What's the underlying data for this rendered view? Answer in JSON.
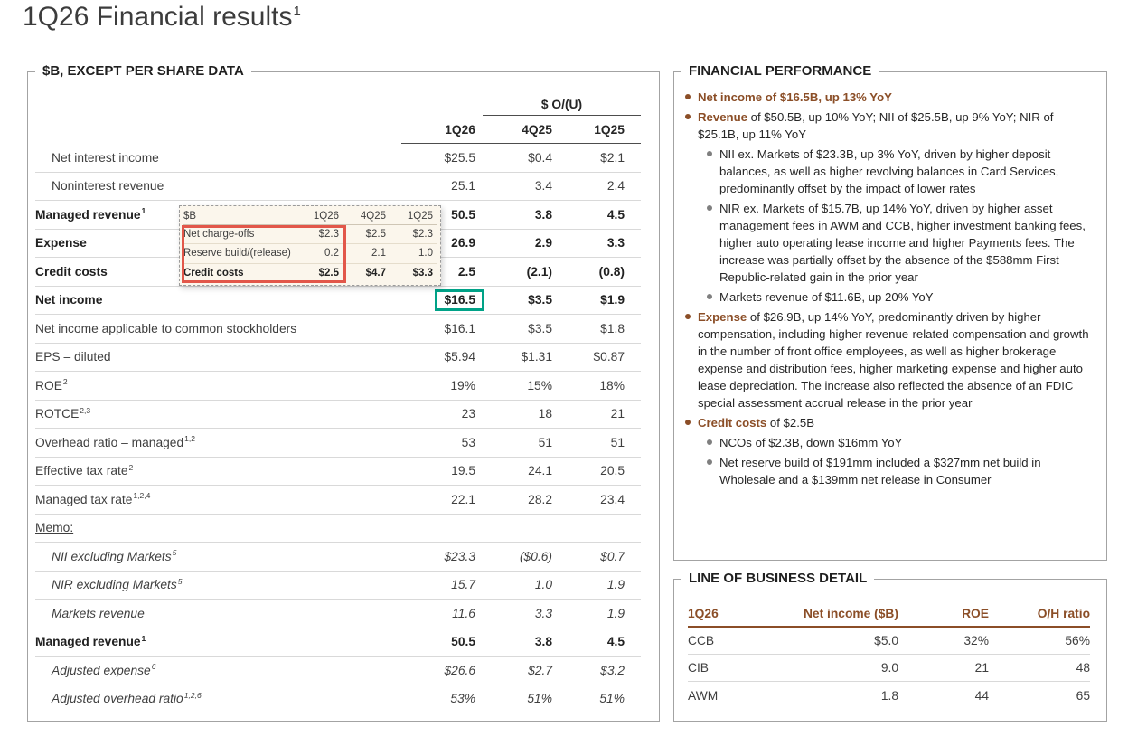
{
  "page": {
    "title": "1Q26 Financial results",
    "title_sup": "1"
  },
  "colors": {
    "accent_brown": "#8B4E27",
    "highlight_teal": "#00A287",
    "callout_red": "#E2574A"
  },
  "left_panel": {
    "title": "$B, EXCEPT PER SHARE DATA",
    "ou_header": "$ O/(U)",
    "columns": [
      "1Q26",
      "4Q25",
      "1Q25"
    ],
    "rows": [
      {
        "label": "Net interest income",
        "sup": "",
        "indent": true,
        "values": [
          "$25.5",
          "$0.4",
          "$2.1"
        ]
      },
      {
        "label": "Noninterest revenue",
        "sup": "",
        "indent": true,
        "values": [
          "25.1",
          "3.4",
          "2.4"
        ]
      },
      {
        "label": "Managed revenue",
        "sup": "1",
        "bold": true,
        "values": [
          "50.5",
          "3.8",
          "4.5"
        ]
      },
      {
        "label": "Expense",
        "sup": "",
        "bold": true,
        "values": [
          "26.9",
          "2.9",
          "3.3"
        ]
      },
      {
        "label": "Credit costs",
        "sup": "",
        "bold": true,
        "values": [
          "2.5",
          "(2.1)",
          "(0.8)"
        ]
      },
      {
        "label": "Net income",
        "sup": "",
        "bold": true,
        "highlight": true,
        "values": [
          "$16.5",
          "$3.5",
          "$1.9"
        ]
      },
      {
        "label": "Net income applicable to common stockholders",
        "sup": "",
        "values": [
          "$16.1",
          "$3.5",
          "$1.8"
        ]
      },
      {
        "label": "EPS – diluted",
        "sup": "",
        "values": [
          "$5.94",
          "$1.31",
          "$0.87"
        ]
      },
      {
        "label": "ROE",
        "sup": "2",
        "values": [
          "19%",
          "15%",
          "18%"
        ]
      },
      {
        "label": "ROTCE",
        "sup": "2,3",
        "values": [
          "23",
          "18",
          "21"
        ]
      },
      {
        "label": "Overhead ratio – managed",
        "sup": "1,2",
        "values": [
          "53",
          "51",
          "51"
        ]
      },
      {
        "label": "Effective tax rate",
        "sup": "2",
        "values": [
          "19.5",
          "24.1",
          "20.5"
        ]
      },
      {
        "label": "Managed tax rate",
        "sup": "1,2,4",
        "values": [
          "22.1",
          "28.2",
          "23.4"
        ]
      },
      {
        "label": "Memo:",
        "sup": "",
        "memo": true,
        "values": [
          "",
          "",
          ""
        ]
      },
      {
        "label": "NII excluding Markets",
        "sup": "5",
        "italic": true,
        "indent": true,
        "values": [
          "$23.3",
          "($0.6)",
          "$0.7"
        ]
      },
      {
        "label": "NIR excluding Markets",
        "sup": "5",
        "italic": true,
        "indent": true,
        "values": [
          "15.7",
          "1.0",
          "1.9"
        ]
      },
      {
        "label": "Markets revenue",
        "sup": "",
        "italic": true,
        "indent": true,
        "values": [
          "11.6",
          "3.3",
          "1.9"
        ]
      },
      {
        "label": "Managed revenue",
        "sup": "1",
        "bold": true,
        "values": [
          "50.5",
          "3.8",
          "4.5"
        ]
      },
      {
        "label": "Adjusted expense",
        "sup": "6",
        "italic": true,
        "indent": true,
        "values": [
          "$26.6",
          "$2.7",
          "$3.2"
        ]
      },
      {
        "label": "Adjusted overhead ratio",
        "sup": "1,2,6",
        "italic": true,
        "indent": true,
        "values": [
          "53%",
          "51%",
          "51%"
        ]
      }
    ]
  },
  "callout": {
    "unit_header": "$B",
    "columns": [
      "1Q26",
      "4Q25",
      "1Q25"
    ],
    "rows": [
      {
        "label": "Net charge-offs",
        "values": [
          "$2.3",
          "$2.5",
          "$2.3"
        ]
      },
      {
        "label": "Reserve build/(release)",
        "values": [
          "0.2",
          "2.1",
          "1.0"
        ]
      },
      {
        "label": "Credit costs",
        "bold": true,
        "values": [
          "$2.5",
          "$4.7",
          "$3.3"
        ]
      }
    ]
  },
  "financial_performance": {
    "title": "FINANCIAL PERFORMANCE",
    "bullets": [
      {
        "sub": false,
        "lead": "Net income of $16.5B, up 13% YoY",
        "rest": ""
      },
      {
        "sub": false,
        "lead": "Revenue",
        "rest": " of $50.5B, up 10% YoY; NII of $25.5B, up 9% YoY; NIR of $25.1B, up 11% YoY"
      },
      {
        "sub": true,
        "lead": "",
        "rest": "NII ex. Markets of $23.3B, up 3% YoY, driven by higher deposit balances, as well as higher revolving balances in Card Services, predominantly offset by the impact of lower rates"
      },
      {
        "sub": true,
        "lead": "",
        "rest": "NIR ex. Markets of $15.7B, up 14% YoY, driven by higher asset management fees in AWM and CCB, higher investment banking fees, higher auto operating lease income and higher Payments fees. The increase was partially offset by the absence of the $588mm First Republic-related gain in the prior year"
      },
      {
        "sub": true,
        "lead": "",
        "rest": "Markets revenue of $11.6B, up 20% YoY"
      },
      {
        "sub": false,
        "lead": "Expense",
        "rest": " of $26.9B, up 14% YoY, predominantly driven by higher compensation, including higher revenue-related compensation and growth in the number of front office employees, as well as higher brokerage expense and distribution fees, higher marketing expense and higher auto lease depreciation. The increase also reflected the absence of an FDIC special assessment accrual release in the prior year"
      },
      {
        "sub": false,
        "lead": "Credit costs",
        "rest": " of $2.5B"
      },
      {
        "sub": true,
        "lead": "",
        "rest": "NCOs of $2.3B, down $16mm YoY"
      },
      {
        "sub": true,
        "lead": "",
        "rest": "Net reserve build of $191mm included a $327mm net build in Wholesale and a $139mm net release in Consumer"
      }
    ]
  },
  "lob_panel": {
    "title": "LINE OF BUSINESS DETAIL",
    "columns": [
      "1Q26",
      "Net income ($B)",
      "ROE",
      "O/H ratio"
    ],
    "rows": [
      {
        "label": "CCB",
        "values": [
          "$5.0",
          "32%",
          "56%"
        ]
      },
      {
        "label": "CIB",
        "values": [
          "9.0",
          "21",
          "48"
        ]
      },
      {
        "label": "AWM",
        "values": [
          "1.8",
          "44",
          "65"
        ]
      }
    ]
  }
}
